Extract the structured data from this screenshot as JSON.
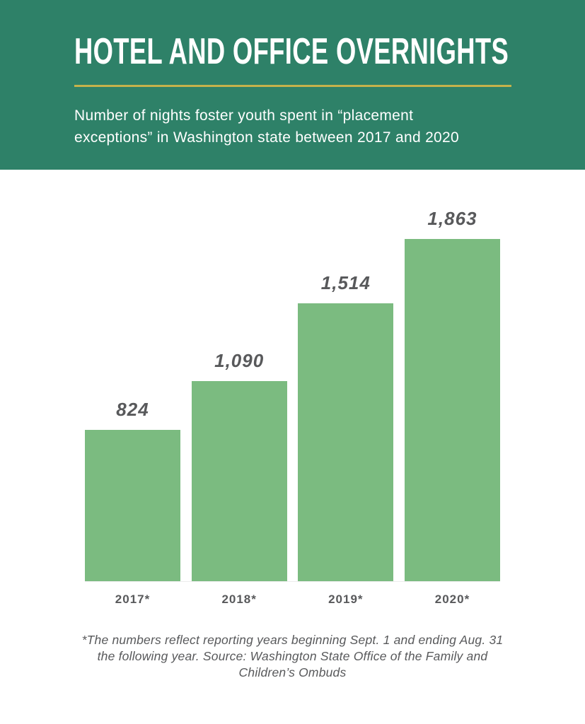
{
  "header": {
    "title": "HOTEL AND OFFICE OVERNIGHTS",
    "subtitle": "Number of nights foster youth spent in “placement exceptions” in Washington state between 2017 and 2020",
    "subtitle_lines": [
      "Number of nights foster youth spent in “placement",
      "exceptions” in Washington state between 2017 and 2020"
    ]
  },
  "colors": {
    "header_bg": "#2e8168",
    "header_text": "#ffffff",
    "divider_gold": "#c5b24b",
    "bar_green": "#7bbb80",
    "text_dark": "#58595b",
    "page_bg": "#ffffff"
  },
  "chart_data": {
    "type": "bar",
    "title": "HOTEL AND OFFICE OVERNIGHTS",
    "subtitle": "Number of nights foster youth spent in “placement exceptions” in Washington state between 2017 and 2020",
    "categories": [
      "2017*",
      "2018*",
      "2019*",
      "2020*"
    ],
    "values": [
      824,
      1090,
      1514,
      1863
    ],
    "value_labels": [
      "824",
      "1,090",
      "1,514",
      "1,863"
    ],
    "xlabel": "",
    "ylabel": "",
    "ylim": [
      0,
      1863
    ],
    "grid": false,
    "legend": false,
    "bar_color": "#7bbb80",
    "value_label_color": "#58595b"
  },
  "footnote": {
    "text": "*The numbers reflect reporting years beginning Sept. 1 and ending Aug. 31 the following year. Source: Washington State Office of the Family and Children’s Ombuds",
    "lines": [
      "*The numbers reflect reporting years beginning Sept. 1 and ending Aug. 31",
      "the following year. Source: Washington State Office of the Family and",
      "Children’s Ombuds"
    ]
  }
}
